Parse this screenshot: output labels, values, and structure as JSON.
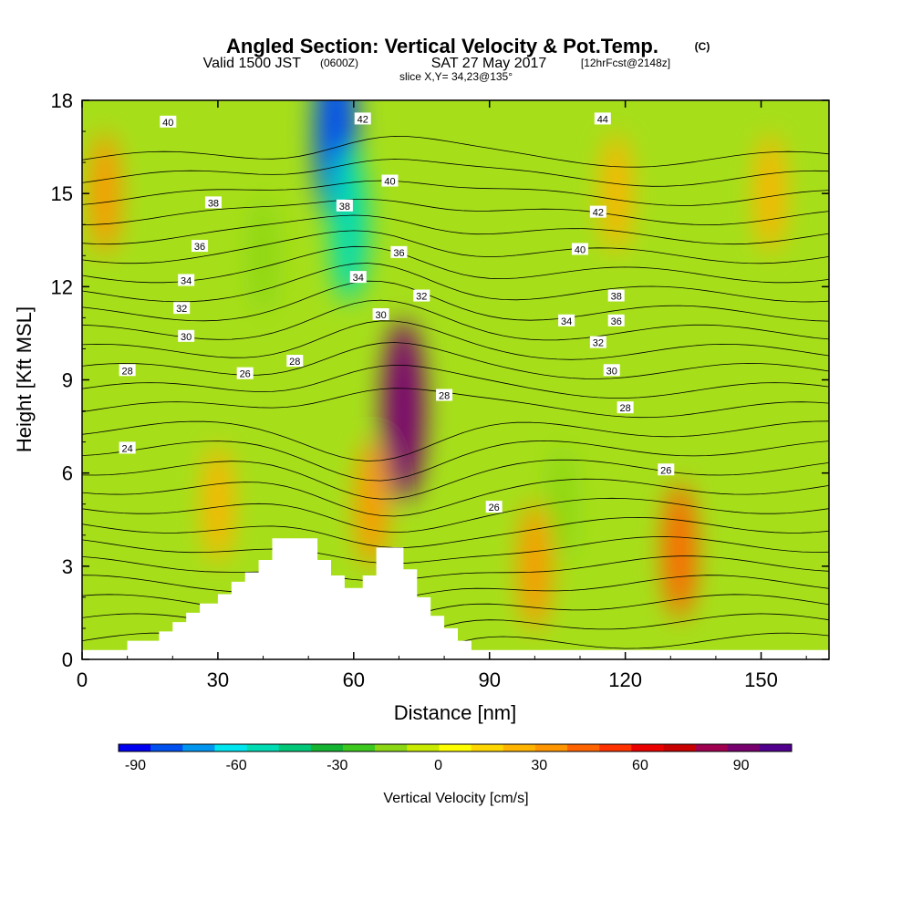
{
  "title_main": "Angled Section: Vertical Velocity & Pot.Temp.",
  "title_unit": "(C)",
  "subtitle_valid": "Valid 1500 JST",
  "subtitle_z": "(0600Z)",
  "subtitle_date": "SAT 27 May 2017",
  "subtitle_fcst": "[12hrFcst@2148z]",
  "subtitle_slice": "slice X,Y= 34,23@135°",
  "chart_data": {
    "type": "heatmap",
    "title": "Angled Section: Vertical Velocity & Pot.Temp.",
    "xlabel": "Distance [nm]",
    "ylabel": "Height [Kft MSL]",
    "xlim": [
      0,
      165
    ],
    "ylim": [
      0,
      18
    ],
    "xticks": [
      "0",
      "30",
      "60",
      "90",
      "120",
      "150"
    ],
    "yticks": [
      "0",
      "3",
      "6",
      "9",
      "12",
      "15",
      "18"
    ],
    "colorbar": {
      "title": "Vertical Velocity [cm/s]",
      "ticks": [
        "-90",
        "-60",
        "-30",
        "0",
        "30",
        "60",
        "90"
      ],
      "colors": [
        "#0000f0",
        "#0050f0",
        "#0096f0",
        "#00e6f0",
        "#00dcb4",
        "#00c878",
        "#14b432",
        "#3cc81e",
        "#8cd714",
        "#c8eb00",
        "#ffff00",
        "#ffd700",
        "#ffb400",
        "#ff9600",
        "#ff6400",
        "#ff3200",
        "#eb0000",
        "#c80000",
        "#a00050",
        "#78006e",
        "#50008c"
      ]
    },
    "terrain": [
      {
        "x": 0,
        "y": 0.3
      },
      {
        "x": 10,
        "y": 0.3
      },
      {
        "x": 10,
        "y": 0.6
      },
      {
        "x": 17,
        "y": 0.6
      },
      {
        "x": 17,
        "y": 0.9
      },
      {
        "x": 20,
        "y": 0.9
      },
      {
        "x": 20,
        "y": 1.2
      },
      {
        "x": 23,
        "y": 1.2
      },
      {
        "x": 23,
        "y": 1.5
      },
      {
        "x": 26,
        "y": 1.5
      },
      {
        "x": 26,
        "y": 1.8
      },
      {
        "x": 30,
        "y": 1.8
      },
      {
        "x": 30,
        "y": 2.1
      },
      {
        "x": 33,
        "y": 2.1
      },
      {
        "x": 33,
        "y": 2.5
      },
      {
        "x": 36,
        "y": 2.5
      },
      {
        "x": 36,
        "y": 2.8
      },
      {
        "x": 39,
        "y": 2.8
      },
      {
        "x": 39,
        "y": 3.2
      },
      {
        "x": 42,
        "y": 3.2
      },
      {
        "x": 42,
        "y": 3.9
      },
      {
        "x": 52,
        "y": 3.9
      },
      {
        "x": 52,
        "y": 3.2
      },
      {
        "x": 55,
        "y": 3.2
      },
      {
        "x": 55,
        "y": 2.7
      },
      {
        "x": 58,
        "y": 2.7
      },
      {
        "x": 58,
        "y": 2.3
      },
      {
        "x": 62,
        "y": 2.3
      },
      {
        "x": 62,
        "y": 2.7
      },
      {
        "x": 65,
        "y": 2.7
      },
      {
        "x": 65,
        "y": 3.6
      },
      {
        "x": 71,
        "y": 3.6
      },
      {
        "x": 71,
        "y": 2.9
      },
      {
        "x": 74,
        "y": 2.9
      },
      {
        "x": 74,
        "y": 2.0
      },
      {
        "x": 77,
        "y": 2.0
      },
      {
        "x": 77,
        "y": 1.4
      },
      {
        "x": 80,
        "y": 1.4
      },
      {
        "x": 80,
        "y": 1.0
      },
      {
        "x": 83,
        "y": 1.0
      },
      {
        "x": 83,
        "y": 0.6
      },
      {
        "x": 86,
        "y": 0.6
      },
      {
        "x": 86,
        "y": 0.3
      },
      {
        "x": 165,
        "y": 0.3
      }
    ],
    "velocity_features": [
      {
        "x": 56,
        "y": 17,
        "value": -90
      },
      {
        "x": 59,
        "y": 14,
        "value": -60
      },
      {
        "x": 71,
        "y": 8,
        "value": 90
      },
      {
        "x": 64,
        "y": 5,
        "value": 30
      },
      {
        "x": 40,
        "y": 13,
        "value": -20
      },
      {
        "x": 30,
        "y": 5,
        "value": 20
      },
      {
        "x": 5,
        "y": 15,
        "value": 25
      },
      {
        "x": 132,
        "y": 3.5,
        "value": 40
      },
      {
        "x": 118,
        "y": 15,
        "value": 20
      },
      {
        "x": 152,
        "y": 15,
        "value": 20
      },
      {
        "x": 100,
        "y": 3,
        "value": 30
      },
      {
        "x": 106,
        "y": 5,
        "value": -20
      }
    ],
    "contour_labels": [
      {
        "x": 19,
        "y": 17.3,
        "label": "40"
      },
      {
        "x": 62,
        "y": 17.4,
        "label": "42"
      },
      {
        "x": 68,
        "y": 15.4,
        "label": "40"
      },
      {
        "x": 58,
        "y": 14.6,
        "label": "38"
      },
      {
        "x": 29,
        "y": 14.7,
        "label": "38"
      },
      {
        "x": 26,
        "y": 13.3,
        "label": "36"
      },
      {
        "x": 70,
        "y": 13.1,
        "label": "36"
      },
      {
        "x": 23,
        "y": 12.2,
        "label": "34"
      },
      {
        "x": 61,
        "y": 12.3,
        "label": "34"
      },
      {
        "x": 75,
        "y": 11.7,
        "label": "32"
      },
      {
        "x": 22,
        "y": 11.3,
        "label": "32"
      },
      {
        "x": 66,
        "y": 11.1,
        "label": "30"
      },
      {
        "x": 23,
        "y": 10.4,
        "label": "30"
      },
      {
        "x": 10,
        "y": 9.3,
        "label": "28"
      },
      {
        "x": 47,
        "y": 9.6,
        "label": "28"
      },
      {
        "x": 36,
        "y": 9.2,
        "label": "26"
      },
      {
        "x": 80,
        "y": 8.5,
        "label": "28"
      },
      {
        "x": 10,
        "y": 6.8,
        "label": "24"
      },
      {
        "x": 91,
        "y": 4.9,
        "label": "26"
      },
      {
        "x": 115,
        "y": 17.4,
        "label": "44"
      },
      {
        "x": 114,
        "y": 14.4,
        "label": "42"
      },
      {
        "x": 110,
        "y": 13.2,
        "label": "40"
      },
      {
        "x": 118,
        "y": 11.7,
        "label": "38"
      },
      {
        "x": 118,
        "y": 10.9,
        "label": "36"
      },
      {
        "x": 107,
        "y": 10.9,
        "label": "34"
      },
      {
        "x": 114,
        "y": 10.2,
        "label": "32"
      },
      {
        "x": 117,
        "y": 9.3,
        "label": "30"
      },
      {
        "x": 120,
        "y": 8.1,
        "label": "28"
      },
      {
        "x": 129,
        "y": 6.1,
        "label": "26"
      }
    ]
  }
}
